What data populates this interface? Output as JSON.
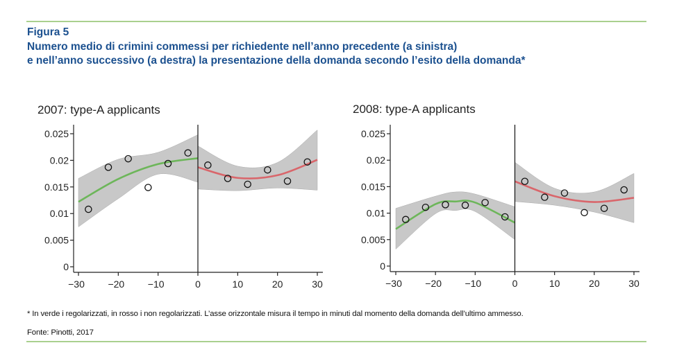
{
  "figure": {
    "label": "Figura 5",
    "title_line1": "Numero medio di crimini commessi per richiedente nell’anno precedente (a sinistra)",
    "title_line2": "e nell’anno successivo (a destra) la presentazione della domanda secondo l’esito della domanda*",
    "footnote": "* In verde i regolarizzati, in rosso i non regolarizzati. L’asse orizzontale misura il tempo in minuti dal momento della domanda dell’ultimo ammesso.",
    "source": "Fonte: Pinotti, 2017",
    "rule_color": "#a9d08e",
    "title_color": "#1b508f"
  },
  "chart_data": [
    {
      "type": "scatter",
      "title": "2007: type-A applicants",
      "xlim": [
        -30,
        30
      ],
      "ylim": [
        0,
        0.025
      ],
      "xticks": [
        -30,
        -20,
        -10,
        0,
        10,
        20,
        30
      ],
      "xtick_labels": [
        "−30",
        "−20",
        "−10",
        "0",
        "10",
        "20",
        "30"
      ],
      "yticks": [
        0,
        0.005,
        0.01,
        0.015,
        0.02,
        0.025
      ],
      "ytick_labels": [
        "0",
        "0.005",
        "0.01",
        "0.015",
        "0.02",
        "0.025"
      ],
      "cutoff": 0,
      "points": {
        "x": [
          -27.5,
          -22.5,
          -17.5,
          -12.5,
          -7.5,
          -2.5,
          2.5,
          7.5,
          12.5,
          17.5,
          22.5,
          27.5
        ],
        "y": [
          0.0108,
          0.0187,
          0.0203,
          0.0149,
          0.0194,
          0.0214,
          0.0191,
          0.0166,
          0.0155,
          0.0182,
          0.0161,
          0.0197
        ]
      },
      "fits": [
        {
          "color": "#6db65a",
          "x": [
            -30,
            -20,
            -10,
            0
          ],
          "y": [
            0.0122,
            0.0165,
            0.0193,
            0.0204
          ],
          "lower": [
            0.0075,
            0.0128,
            0.0174,
            0.0159
          ],
          "upper": [
            0.0166,
            0.0202,
            0.0215,
            0.0248
          ]
        },
        {
          "color": "#d9666b",
          "x": [
            0,
            10,
            20,
            30
          ],
          "y": [
            0.0187,
            0.0167,
            0.0172,
            0.0201
          ],
          "lower": [
            0.0146,
            0.0143,
            0.0148,
            0.0144
          ],
          "upper": [
            0.0227,
            0.0189,
            0.0196,
            0.0257
          ]
        }
      ],
      "band_color": "#c8c8c8",
      "grid": false
    },
    {
      "type": "scatter",
      "title": "2008: type-A applicants",
      "xlim": [
        -30,
        30
      ],
      "ylim": [
        0,
        0.025
      ],
      "xticks": [
        -30,
        -20,
        -10,
        0,
        10,
        20,
        30
      ],
      "xtick_labels": [
        "−30",
        "−20",
        "−10",
        "0",
        "10",
        "20",
        "30"
      ],
      "yticks": [
        0,
        0.005,
        0.01,
        0.015,
        0.02,
        0.025
      ],
      "ytick_labels": [
        "0",
        "0.005",
        "0.01",
        "0.015",
        "0.02",
        "0.025"
      ],
      "cutoff": 0,
      "points": {
        "x": [
          -27.5,
          -22.5,
          -17.5,
          -12.5,
          -7.5,
          -2.5,
          2.5,
          7.5,
          12.5,
          17.5,
          22.5,
          27.5
        ],
        "y": [
          0.0088,
          0.0111,
          0.0116,
          0.0115,
          0.012,
          0.0093,
          0.016,
          0.013,
          0.0138,
          0.0101,
          0.0109,
          0.0144
        ]
      },
      "fits": [
        {
          "color": "#6db65a",
          "x": [
            -30,
            -20,
            -15,
            -10,
            0
          ],
          "y": [
            0.007,
            0.0117,
            0.0122,
            0.012,
            0.0082
          ],
          "lower": [
            0.0032,
            0.0099,
            0.0105,
            0.0103,
            0.005
          ],
          "upper": [
            0.0109,
            0.0132,
            0.014,
            0.0136,
            0.0112
          ]
        },
        {
          "color": "#d9666b",
          "x": [
            0,
            10,
            20,
            30
          ],
          "y": [
            0.016,
            0.0132,
            0.0121,
            0.0129
          ],
          "lower": [
            0.0122,
            0.0115,
            0.0102,
            0.0082
          ],
          "upper": [
            0.0196,
            0.0147,
            0.014,
            0.0175
          ]
        }
      ],
      "band_color": "#c8c8c8",
      "grid": false
    }
  ]
}
